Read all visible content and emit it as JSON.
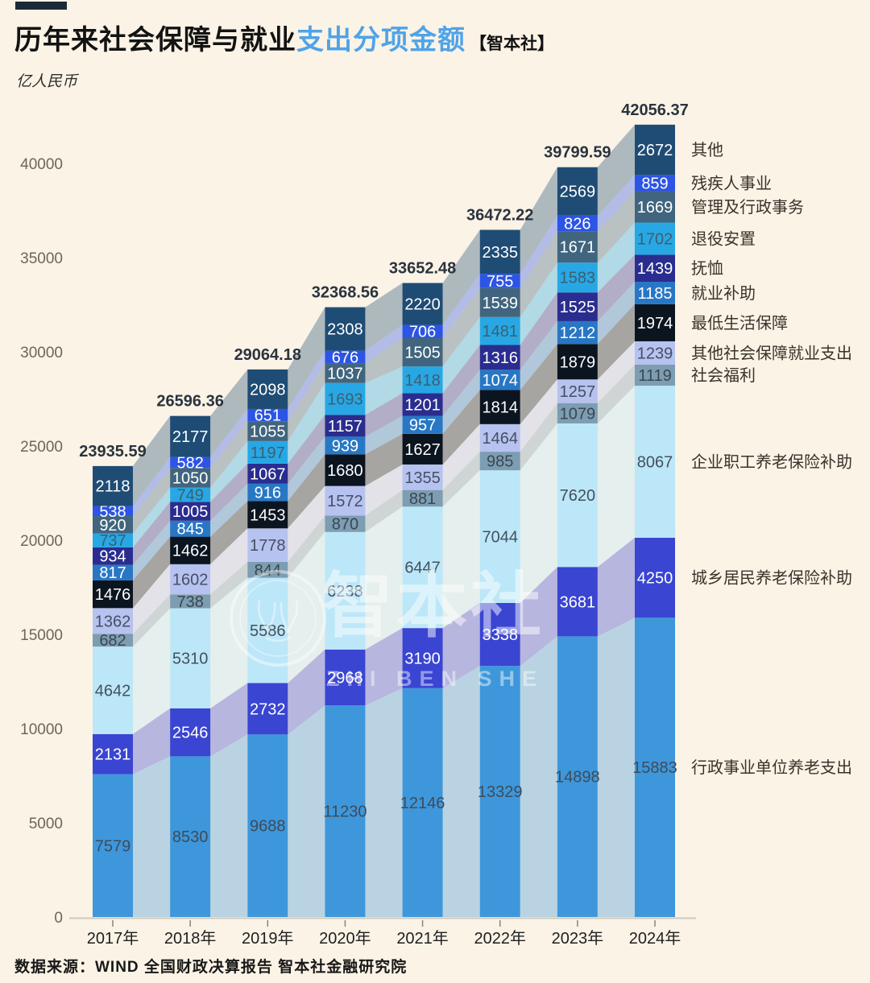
{
  "header": {
    "title_black": "历年来社会保障与就业",
    "title_blue": "支出分项金额",
    "title_badge": "【智本社】",
    "subtitle": "亿人民币"
  },
  "watermark": {
    "cn": "智本社",
    "en": "ZHI BEN SHE"
  },
  "footer": {
    "source": "数据来源：WIND 全国财政决算报告 智本社金融研究院"
  },
  "colors": {
    "background": "#FBF3E6",
    "accent_dash": "#1B2A38",
    "title_accent": "#4FA3E8",
    "axis_line": "#CFC9BD",
    "tick_label": "#6B665C"
  },
  "chart_data": {
    "type": "bar",
    "stacked": true,
    "unit": "亿人民币",
    "legend_position": "right",
    "grid": false,
    "categories": [
      "2017年",
      "2018年",
      "2019年",
      "2020年",
      "2021年",
      "2022年",
      "2023年",
      "2024年"
    ],
    "totals": [
      "23935.59",
      "26596.36",
      "29064.18",
      "32368.56",
      "33652.48",
      "36472.22",
      "39799.59",
      "42056.37"
    ],
    "yticks": [
      0,
      5000,
      10000,
      15000,
      20000,
      25000,
      30000,
      35000,
      40000
    ],
    "ylim": [
      0,
      42100
    ],
    "series": [
      {
        "name": "行政事业单位养老支出",
        "color": "#3E97DB",
        "label_color": "#3D4C5A",
        "values": [
          7579,
          8530,
          9688,
          11230,
          12146,
          13329,
          14898,
          15883
        ]
      },
      {
        "name": "城乡居民养老保险补助",
        "color": "#3A45D2",
        "label_color": "#FFFFFF",
        "values": [
          2131,
          2546,
          2732,
          2968,
          3190,
          3338,
          3681,
          4250
        ]
      },
      {
        "name": "企业职工养老保险补助",
        "color": "#BCE7F8",
        "label_color": "#44505C",
        "values": [
          4642,
          5310,
          5586,
          6238,
          6447,
          7044,
          7620,
          8067
        ]
      },
      {
        "name": "社会福利",
        "color": "#7C9DB2",
        "label_color": "#3A4750",
        "values": [
          682,
          738,
          844,
          870,
          881,
          985,
          1079,
          1119
        ]
      },
      {
        "name": "其他社会保障就业支出",
        "color": "#B6C2EF",
        "label_color": "#474F63",
        "values": [
          1362,
          1602,
          1778,
          1572,
          1355,
          1464,
          1257,
          1239
        ]
      },
      {
        "name": "最低生活保障",
        "color": "#0B1520",
        "label_color": "#FFFFFF",
        "values": [
          1476,
          1462,
          1453,
          1680,
          1627,
          1814,
          1879,
          1974
        ]
      },
      {
        "name": "就业补助",
        "color": "#2877C5",
        "label_color": "#FFFFFF",
        "values": [
          817,
          845,
          916,
          939,
          957,
          1074,
          1212,
          1185
        ]
      },
      {
        "name": "抚恤",
        "color": "#2A2D8F",
        "label_color": "#FFFFFF",
        "values": [
          934,
          1005,
          1067,
          1157,
          1201,
          1316,
          1525,
          1439
        ]
      },
      {
        "name": "退役安置",
        "color": "#27A8E4",
        "label_color": "#3F5E71",
        "values": [
          737,
          749,
          1197,
          1693,
          1418,
          1481,
          1583,
          1702
        ]
      },
      {
        "name": "管理及行政事务",
        "color": "#41657E",
        "label_color": "#FFFFFF",
        "values": [
          920,
          1050,
          1055,
          1037,
          1505,
          1539,
          1671,
          1669
        ]
      },
      {
        "name": "残疾人事业",
        "color": "#2C55E5",
        "label_color": "#FFFFFF",
        "values": [
          538,
          582,
          651,
          676,
          706,
          755,
          826,
          859
        ]
      },
      {
        "name": "其他",
        "color": "#1F4C74",
        "label_color": "#FFFFFF",
        "values": [
          2118,
          2177,
          2098,
          2308,
          2220,
          2335,
          2569,
          2672
        ]
      }
    ]
  }
}
